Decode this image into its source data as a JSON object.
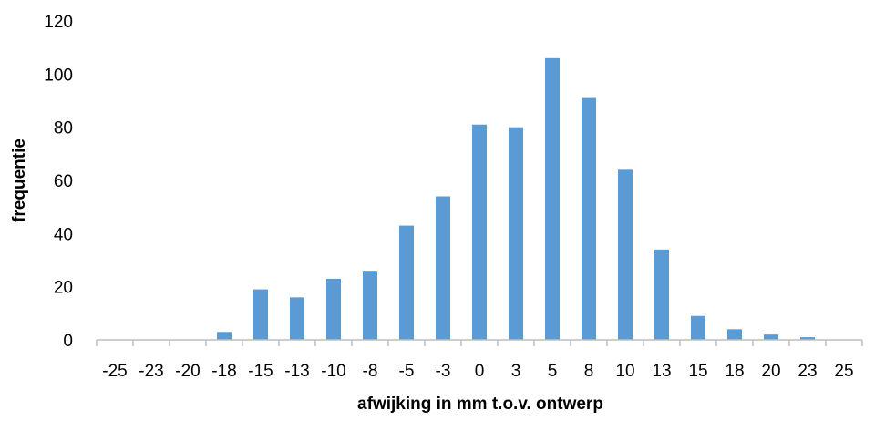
{
  "chart_data": {
    "type": "bar",
    "title": "",
    "xlabel": "afwijking in mm t.o.v. ontwerp",
    "ylabel": "frequentie",
    "categories": [
      "-25",
      "-23",
      "-20",
      "-18",
      "-15",
      "-13",
      "-10",
      "-8",
      "-5",
      "-3",
      "0",
      "3",
      "5",
      "8",
      "10",
      "13",
      "15",
      "18",
      "20",
      "23",
      "25"
    ],
    "series": [
      {
        "values": [
          0,
          0,
          0,
          3,
          19,
          16,
          23,
          26,
          43,
          54,
          81,
          80,
          106,
          91,
          64,
          34,
          9,
          4,
          2,
          1,
          0
        ]
      }
    ],
    "ylim": [
      0,
      120
    ],
    "yticks": [
      0,
      20,
      40,
      60,
      80,
      100,
      120
    ],
    "bar_color": "#5b9bd5",
    "axis_color": "#bfbfbf",
    "grid": false,
    "legend": "none"
  }
}
